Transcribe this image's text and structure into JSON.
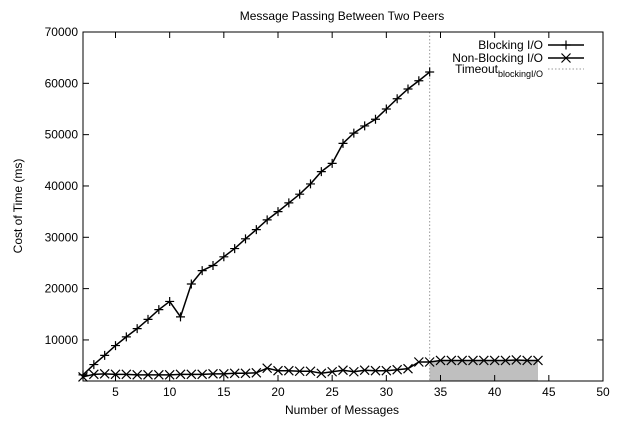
{
  "chart_data": {
    "type": "line",
    "title": "Message Passing Between Two Peers",
    "xlabel": "Number of Messages",
    "ylabel": "Cost of Time (ms)",
    "xlim": [
      2,
      50
    ],
    "ylim": [
      2000,
      70000
    ],
    "x_ticks": [
      5,
      10,
      15,
      20,
      25,
      30,
      35,
      40,
      45,
      50
    ],
    "y_ticks": [
      10000,
      20000,
      30000,
      40000,
      50000,
      60000,
      70000
    ],
    "grid": false,
    "legend_position": "top-right",
    "series": [
      {
        "name": "Blocking I/O",
        "marker": "plus",
        "color": "#000000",
        "x": [
          2,
          3,
          4,
          5,
          6,
          7,
          8,
          9,
          10,
          11,
          12,
          13,
          14,
          15,
          16,
          17,
          18,
          19,
          20,
          21,
          22,
          23,
          24,
          25,
          26,
          27,
          28,
          29,
          30,
          31,
          32,
          33,
          34
        ],
        "y": [
          3200,
          5200,
          7000,
          8900,
          10600,
          12200,
          14000,
          15900,
          17500,
          14500,
          20900,
          23500,
          24500,
          26200,
          27800,
          29700,
          31500,
          33400,
          35000,
          36700,
          38400,
          40400,
          42800,
          44400,
          48300,
          50300,
          51700,
          53000,
          55000,
          57000,
          58900,
          60500,
          62200
        ]
      },
      {
        "name": "Non-Blocking I/O",
        "marker": "x",
        "color": "#000000",
        "x": [
          2,
          3,
          4,
          5,
          6,
          7,
          8,
          9,
          10,
          11,
          12,
          13,
          14,
          15,
          16,
          17,
          18,
          19,
          20,
          21,
          22,
          23,
          24,
          25,
          26,
          27,
          28,
          29,
          30,
          31,
          32,
          33,
          34,
          35,
          36,
          37,
          38,
          39,
          40,
          41,
          42,
          43,
          44
        ],
        "y": [
          2800,
          3300,
          3400,
          3300,
          3300,
          3200,
          3200,
          3200,
          3200,
          3300,
          3300,
          3300,
          3400,
          3400,
          3500,
          3500,
          3600,
          4500,
          4000,
          4000,
          3900,
          3900,
          3500,
          3800,
          4100,
          3800,
          4100,
          4000,
          4000,
          4200,
          4400,
          5700,
          5700,
          6000,
          6000,
          6000,
          6000,
          6000,
          6000,
          6000,
          6100,
          6000,
          6000
        ]
      }
    ],
    "timeout": {
      "label_main": "Timeout",
      "label_sub": "blockingI/O",
      "x": 34,
      "line_color": "#999999",
      "shade_color": "#bfbfbf",
      "shade_x": [
        34,
        44
      ]
    }
  }
}
